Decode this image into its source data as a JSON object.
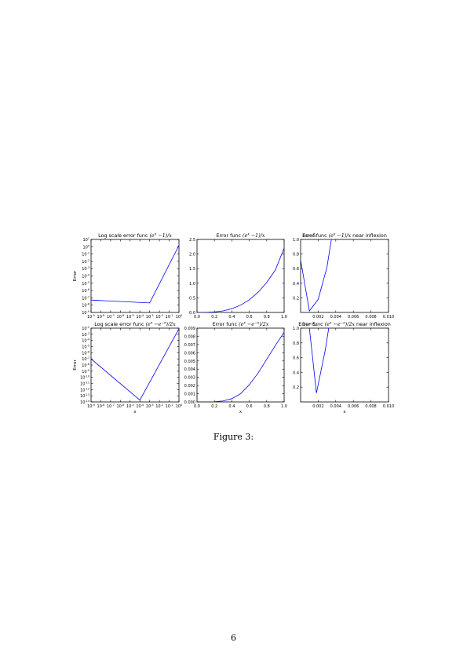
{
  "page": {
    "figure_caption": "Figure 3:",
    "page_number": "6"
  },
  "chart_data": [
    {
      "type": "line",
      "title": "Log scale error func (e^x − 1)/x",
      "title_plain": "Log scale error func ",
      "title_math": "(e",
      "title_sup": "x",
      "title_math_rest": " −1)/x",
      "xlabel": "",
      "ylabel": "Error",
      "xscale": "log",
      "yscale": "log",
      "xlim": [
        1e-09,
        1
      ],
      "ylim": [
        1e-09,
        10
      ],
      "x_ticks": [
        "10",
        "10",
        "10",
        "10",
        "10",
        "10",
        "10",
        "10",
        "10",
        "10"
      ],
      "x_tick_exps": [
        "-9",
        "-8",
        "-7",
        "-6",
        "-5",
        "-4",
        "-3",
        "-2",
        "-1",
        "0"
      ],
      "y_ticks": [
        "10",
        "10",
        "10",
        "10",
        "10",
        "10",
        "10",
        "10",
        "10",
        "10",
        "10"
      ],
      "y_tick_exps": [
        "-9",
        "-8",
        "-7",
        "-6",
        "-5",
        "-4",
        "-3",
        "-2",
        "-1",
        "0",
        "1"
      ],
      "series": [
        {
          "color": "#0000ff",
          "x": [
            1e-09,
            0.001,
            1
          ],
          "y": [
            5e-08,
            2e-08,
            1.5
          ]
        }
      ],
      "grid": false
    },
    {
      "type": "line",
      "title": "Error func (e^x − 1)/x",
      "title_plain": "Error func ",
      "title_math": "(e",
      "title_sup": "x",
      "title_math_rest": " −1)/x",
      "xlabel": "",
      "ylabel": "",
      "xlim": [
        0,
        1
      ],
      "ylim": [
        0,
        2.5
      ],
      "x_ticks": [
        "0.0",
        "0.2",
        "0.4",
        "0.6",
        "0.8",
        "1.0"
      ],
      "y_ticks": [
        "0.0",
        "0.5",
        "1.0",
        "1.5",
        "2.0",
        "2.5"
      ],
      "series": [
        {
          "color": "#0000ff",
          "x": [
            0,
            0.1,
            0.2,
            0.3,
            0.4,
            0.5,
            0.6,
            0.7,
            0.8,
            0.9,
            1.0
          ],
          "y": [
            0,
            0.002,
            0.016,
            0.054,
            0.128,
            0.25,
            0.432,
            0.686,
            1.024,
            1.458,
            2.2
          ]
        }
      ],
      "grid": false
    },
    {
      "type": "line",
      "title": "Error func (e^x − 1)/x near inflexion",
      "title_plain": "Error func ",
      "title_math": "(e",
      "title_sup": "x",
      "title_math_rest": " −1)/x",
      "title_tail": " near inflexion",
      "overlay_text": "1e−5",
      "xlabel": "",
      "ylabel": "",
      "xlim": [
        0,
        0.01
      ],
      "ylim": [
        0,
        1.0
      ],
      "x_ticks": [
        "0.002",
        "0.004",
        "0.006",
        "0.008",
        "0.010"
      ],
      "y_ticks": [
        "0.2",
        "0.4",
        "0.6",
        "0.8",
        "1.0"
      ],
      "series": [
        {
          "color": "#0000ff",
          "x": [
            0,
            0.001,
            0.002,
            0.003,
            0.0035
          ],
          "y": [
            0.72,
            0.02,
            0.18,
            0.62,
            1.0
          ]
        }
      ],
      "grid": false
    },
    {
      "type": "line",
      "title": "Log scale error func (e^x − e^−x)/2x",
      "title_plain": "Log scale error func ",
      "title_math": "(e",
      "title_sup": "x",
      "title_math_mid": " −e",
      "title_sup2": "−x",
      "title_math_rest": ")/2x",
      "xlabel": "x",
      "ylabel": "Error",
      "xscale": "log",
      "yscale": "log",
      "xlim": [
        1e-09,
        1
      ],
      "ylim": [
        1e-14,
        0.01
      ],
      "x_ticks": [
        "10",
        "10",
        "10",
        "10",
        "10",
        "10",
        "10",
        "10",
        "10",
        "10"
      ],
      "x_tick_exps": [
        "-9",
        "-8",
        "-7",
        "-6",
        "-5",
        "-4",
        "-3",
        "-2",
        "-1",
        "0"
      ],
      "y_ticks": [
        "10",
        "10",
        "10",
        "10",
        "10",
        "10",
        "10",
        "10",
        "10",
        "10",
        "10",
        "10",
        "10"
      ],
      "y_tick_exps": [
        "-14",
        "-13",
        "-12",
        "-11",
        "-10",
        "-9",
        "-8",
        "-7",
        "-6",
        "-5",
        "-4",
        "-3",
        "-2"
      ],
      "series": [
        {
          "color": "#0000ff",
          "x": [
            1e-09,
            0.0001,
            1
          ],
          "y": [
            1e-07,
            2e-14,
            0.008
          ]
        }
      ],
      "grid": false
    },
    {
      "type": "line",
      "title": "Error func (e^x − e^−x)/2x",
      "title_plain": "Error func ",
      "title_math": "(e",
      "title_sup": "x",
      "title_math_mid": " −e",
      "title_sup2": "−x",
      "title_math_rest": ")/2x",
      "xlabel": "x",
      "ylabel": "",
      "xlim": [
        0,
        1
      ],
      "ylim": [
        0,
        0.009
      ],
      "x_ticks": [
        "0.0",
        "0.2",
        "0.4",
        "0.6",
        "0.8",
        "1.0"
      ],
      "y_ticks": [
        "0.000",
        "0.001",
        "0.002",
        "0.003",
        "0.004",
        "0.005",
        "0.006",
        "0.007",
        "0.008",
        "0.009"
      ],
      "series": [
        {
          "color": "#0000ff",
          "x": [
            0,
            0.1,
            0.2,
            0.3,
            0.4,
            0.5,
            0.6,
            0.7,
            0.8,
            0.9,
            1.0
          ],
          "y": [
            0,
            0,
            2e-05,
            0.00012,
            0.0004,
            0.001,
            0.0021,
            0.0035,
            0.0052,
            0.0069,
            0.0085
          ]
        }
      ],
      "grid": false
    },
    {
      "type": "line",
      "title": "Error func (e^x − e^−x)/2x near inflexion",
      "title_plain": "Error func ",
      "title_math": "(e",
      "title_sup": "x",
      "title_math_mid": " −e",
      "title_sup2": "−x",
      "title_math_rest": ")/2x",
      "title_tail": " near inflexion",
      "overlay_text": "1e−5",
      "xlabel": "x",
      "ylabel": "",
      "xlim": [
        0,
        0.01
      ],
      "ylim": [
        0,
        1.0
      ],
      "x_ticks": [
        "0.002",
        "0.004",
        "0.006",
        "0.008",
        "0.010"
      ],
      "y_ticks": [
        "0.2",
        "0.4",
        "0.6",
        "0.8",
        "1.0"
      ],
      "series": [
        {
          "color": "#0000ff",
          "x": [
            0.001,
            0.0018,
            0.0028,
            0.0032
          ],
          "y": [
            1.0,
            0.12,
            0.7,
            1.0
          ]
        }
      ],
      "grid": false
    }
  ]
}
